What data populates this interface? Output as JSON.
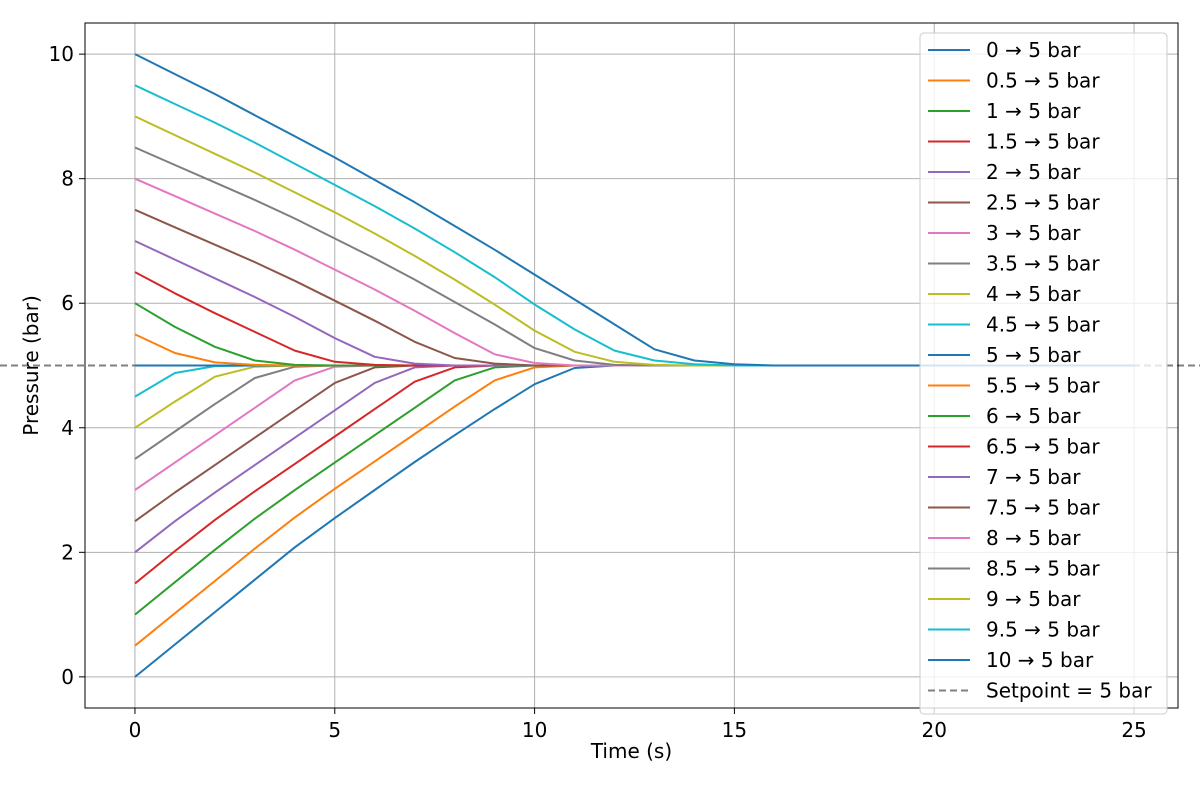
{
  "chart_data": {
    "type": "line",
    "xlabel": "Time (s)",
    "ylabel": "Pressure (bar)",
    "xlim": [
      -1.25,
      26.1
    ],
    "ylim": [
      -0.5,
      10.5
    ],
    "xticks": [
      0,
      5,
      10,
      15,
      20,
      25
    ],
    "yticks": [
      0,
      2,
      4,
      6,
      8,
      10
    ],
    "grid": true,
    "legend_position": "right",
    "x": [
      0,
      1,
      2,
      3,
      4,
      5,
      6,
      7,
      8,
      9,
      10,
      11,
      12,
      13,
      14,
      15,
      16,
      17,
      18,
      19,
      20,
      21,
      22,
      23,
      24,
      25
    ],
    "series": [
      {
        "name": "0 → 5 bar",
        "color": "#1f77b4",
        "dashed": false,
        "values": [
          0.0,
          0.52,
          1.04,
          1.56,
          2.08,
          2.55,
          3.0,
          3.45,
          3.88,
          4.3,
          4.7,
          4.96,
          5.0,
          5.0,
          5.0,
          5.0,
          5.0,
          5.0,
          5.0,
          5.0,
          5.0,
          5.0,
          5.0,
          5.0,
          5.0,
          5.0
        ]
      },
      {
        "name": "0.5 → 5 bar",
        "color": "#ff7f0e",
        "dashed": false,
        "values": [
          0.5,
          1.02,
          1.54,
          2.06,
          2.56,
          3.02,
          3.46,
          3.9,
          4.34,
          4.76,
          4.97,
          5.0,
          5.0,
          5.0,
          5.0,
          5.0,
          5.0,
          5.0,
          5.0,
          5.0,
          5.0,
          5.0,
          5.0,
          5.0,
          5.0,
          5.0
        ]
      },
      {
        "name": "1 → 5 bar",
        "color": "#2ca02c",
        "dashed": false,
        "values": [
          1.0,
          1.52,
          2.04,
          2.54,
          3.0,
          3.44,
          3.88,
          4.32,
          4.76,
          4.97,
          5.0,
          5.0,
          5.0,
          5.0,
          5.0,
          5.0,
          5.0,
          5.0,
          5.0,
          5.0,
          5.0,
          5.0,
          5.0,
          5.0,
          5.0,
          5.0
        ]
      },
      {
        "name": "1.5 → 5 bar",
        "color": "#d62728",
        "dashed": false,
        "values": [
          1.5,
          2.02,
          2.52,
          2.98,
          3.42,
          3.86,
          4.3,
          4.74,
          4.97,
          5.0,
          5.0,
          5.0,
          5.0,
          5.0,
          5.0,
          5.0,
          5.0,
          5.0,
          5.0,
          5.0,
          5.0,
          5.0,
          5.0,
          5.0,
          5.0,
          5.0
        ]
      },
      {
        "name": "2 → 5 bar",
        "color": "#9467bd",
        "dashed": false,
        "values": [
          2.0,
          2.5,
          2.96,
          3.4,
          3.84,
          4.28,
          4.72,
          4.97,
          5.0,
          5.0,
          5.0,
          5.0,
          5.0,
          5.0,
          5.0,
          5.0,
          5.0,
          5.0,
          5.0,
          5.0,
          5.0,
          5.0,
          5.0,
          5.0,
          5.0,
          5.0
        ]
      },
      {
        "name": "2.5 → 5 bar",
        "color": "#8c564b",
        "dashed": false,
        "values": [
          2.5,
          2.96,
          3.4,
          3.84,
          4.28,
          4.72,
          4.97,
          5.0,
          5.0,
          5.0,
          5.0,
          5.0,
          5.0,
          5.0,
          5.0,
          5.0,
          5.0,
          5.0,
          5.0,
          5.0,
          5.0,
          5.0,
          5.0,
          5.0,
          5.0,
          5.0
        ]
      },
      {
        "name": "3 → 5 bar",
        "color": "#e377c2",
        "dashed": false,
        "values": [
          3.0,
          3.44,
          3.88,
          4.32,
          4.76,
          4.98,
          5.0,
          5.0,
          5.0,
          5.0,
          5.0,
          5.0,
          5.0,
          5.0,
          5.0,
          5.0,
          5.0,
          5.0,
          5.0,
          5.0,
          5.0,
          5.0,
          5.0,
          5.0,
          5.0,
          5.0
        ]
      },
      {
        "name": "3.5 → 5 bar",
        "color": "#7f7f7f",
        "dashed": false,
        "values": [
          3.5,
          3.94,
          4.38,
          4.8,
          4.98,
          5.0,
          5.0,
          5.0,
          5.0,
          5.0,
          5.0,
          5.0,
          5.0,
          5.0,
          5.0,
          5.0,
          5.0,
          5.0,
          5.0,
          5.0,
          5.0,
          5.0,
          5.0,
          5.0,
          5.0,
          5.0
        ]
      },
      {
        "name": "4 → 5 bar",
        "color": "#bcbd22",
        "dashed": false,
        "values": [
          4.0,
          4.42,
          4.82,
          4.98,
          5.0,
          5.0,
          5.0,
          5.0,
          5.0,
          5.0,
          5.0,
          5.0,
          5.0,
          5.0,
          5.0,
          5.0,
          5.0,
          5.0,
          5.0,
          5.0,
          5.0,
          5.0,
          5.0,
          5.0,
          5.0,
          5.0
        ]
      },
      {
        "name": "4.5 → 5 bar",
        "color": "#17becf",
        "dashed": false,
        "values": [
          4.5,
          4.88,
          4.99,
          5.0,
          5.0,
          5.0,
          5.0,
          5.0,
          5.0,
          5.0,
          5.0,
          5.0,
          5.0,
          5.0,
          5.0,
          5.0,
          5.0,
          5.0,
          5.0,
          5.0,
          5.0,
          5.0,
          5.0,
          5.0,
          5.0,
          5.0
        ]
      },
      {
        "name": "5 → 5 bar",
        "color": "#1f77b4",
        "dashed": false,
        "values": [
          5.0,
          5.0,
          5.0,
          5.0,
          5.0,
          5.0,
          5.0,
          5.0,
          5.0,
          5.0,
          5.0,
          5.0,
          5.0,
          5.0,
          5.0,
          5.0,
          5.0,
          5.0,
          5.0,
          5.0,
          5.0,
          5.0,
          5.0,
          5.0,
          5.0,
          5.0
        ]
      },
      {
        "name": "5.5 → 5 bar",
        "color": "#ff7f0e",
        "dashed": false,
        "values": [
          5.5,
          5.2,
          5.05,
          5.01,
          5.0,
          5.0,
          5.0,
          5.0,
          5.0,
          5.0,
          5.0,
          5.0,
          5.0,
          5.0,
          5.0,
          5.0,
          5.0,
          5.0,
          5.0,
          5.0,
          5.0,
          5.0,
          5.0,
          5.0,
          5.0,
          5.0
        ]
      },
      {
        "name": "6 → 5 bar",
        "color": "#2ca02c",
        "dashed": false,
        "values": [
          6.0,
          5.62,
          5.3,
          5.08,
          5.01,
          5.0,
          5.0,
          5.0,
          5.0,
          5.0,
          5.0,
          5.0,
          5.0,
          5.0,
          5.0,
          5.0,
          5.0,
          5.0,
          5.0,
          5.0,
          5.0,
          5.0,
          5.0,
          5.0,
          5.0,
          5.0
        ]
      },
      {
        "name": "6.5 → 5 bar",
        "color": "#d62728",
        "dashed": false,
        "values": [
          6.5,
          6.16,
          5.84,
          5.54,
          5.24,
          5.06,
          5.01,
          5.0,
          5.0,
          5.0,
          5.0,
          5.0,
          5.0,
          5.0,
          5.0,
          5.0,
          5.0,
          5.0,
          5.0,
          5.0,
          5.0,
          5.0,
          5.0,
          5.0,
          5.0,
          5.0
        ]
      },
      {
        "name": "7 → 5 bar",
        "color": "#9467bd",
        "dashed": false,
        "values": [
          7.0,
          6.7,
          6.4,
          6.1,
          5.78,
          5.44,
          5.14,
          5.03,
          5.0,
          5.0,
          5.0,
          5.0,
          5.0,
          5.0,
          5.0,
          5.0,
          5.0,
          5.0,
          5.0,
          5.0,
          5.0,
          5.0,
          5.0,
          5.0,
          5.0,
          5.0
        ]
      },
      {
        "name": "7.5 → 5 bar",
        "color": "#8c564b",
        "dashed": false,
        "values": [
          7.5,
          7.22,
          6.94,
          6.66,
          6.36,
          6.04,
          5.72,
          5.38,
          5.12,
          5.03,
          5.0,
          5.0,
          5.0,
          5.0,
          5.0,
          5.0,
          5.0,
          5.0,
          5.0,
          5.0,
          5.0,
          5.0,
          5.0,
          5.0,
          5.0,
          5.0
        ]
      },
      {
        "name": "8 → 5 bar",
        "color": "#e377c2",
        "dashed": false,
        "values": [
          8.0,
          7.72,
          7.44,
          7.16,
          6.86,
          6.54,
          6.22,
          5.88,
          5.52,
          5.18,
          5.04,
          5.0,
          5.0,
          5.0,
          5.0,
          5.0,
          5.0,
          5.0,
          5.0,
          5.0,
          5.0,
          5.0,
          5.0,
          5.0,
          5.0,
          5.0
        ]
      },
      {
        "name": "8.5 → 5 bar",
        "color": "#7f7f7f",
        "dashed": false,
        "values": [
          8.5,
          8.22,
          7.94,
          7.66,
          7.36,
          7.04,
          6.72,
          6.38,
          6.02,
          5.66,
          5.28,
          5.08,
          5.01,
          5.0,
          5.0,
          5.0,
          5.0,
          5.0,
          5.0,
          5.0,
          5.0,
          5.0,
          5.0,
          5.0,
          5.0,
          5.0
        ]
      },
      {
        "name": "9 → 5 bar",
        "color": "#bcbd22",
        "dashed": false,
        "values": [
          9.0,
          8.7,
          8.4,
          8.1,
          7.78,
          7.46,
          7.12,
          6.76,
          6.38,
          5.98,
          5.56,
          5.22,
          5.06,
          5.01,
          5.0,
          5.0,
          5.0,
          5.0,
          5.0,
          5.0,
          5.0,
          5.0,
          5.0,
          5.0,
          5.0,
          5.0
        ]
      },
      {
        "name": "9.5 → 5 bar",
        "color": "#17becf",
        "dashed": false,
        "values": [
          9.5,
          9.2,
          8.9,
          8.58,
          8.24,
          7.9,
          7.56,
          7.2,
          6.82,
          6.42,
          5.98,
          5.58,
          5.24,
          5.08,
          5.02,
          5.0,
          5.0,
          5.0,
          5.0,
          5.0,
          5.0,
          5.0,
          5.0,
          5.0,
          5.0,
          5.0
        ]
      },
      {
        "name": "10 → 5 bar",
        "color": "#1f77b4",
        "dashed": false,
        "values": [
          10.0,
          9.68,
          9.36,
          9.02,
          8.68,
          8.34,
          7.98,
          7.62,
          7.24,
          6.86,
          6.46,
          6.06,
          5.66,
          5.26,
          5.08,
          5.02,
          5.0,
          5.0,
          5.0,
          5.0,
          5.0,
          5.0,
          5.0,
          5.0,
          5.0,
          5.0
        ]
      }
    ],
    "reference_line": {
      "name": "Setpoint = 5 bar",
      "y": 5,
      "color": "#808080",
      "dashed": true
    }
  }
}
